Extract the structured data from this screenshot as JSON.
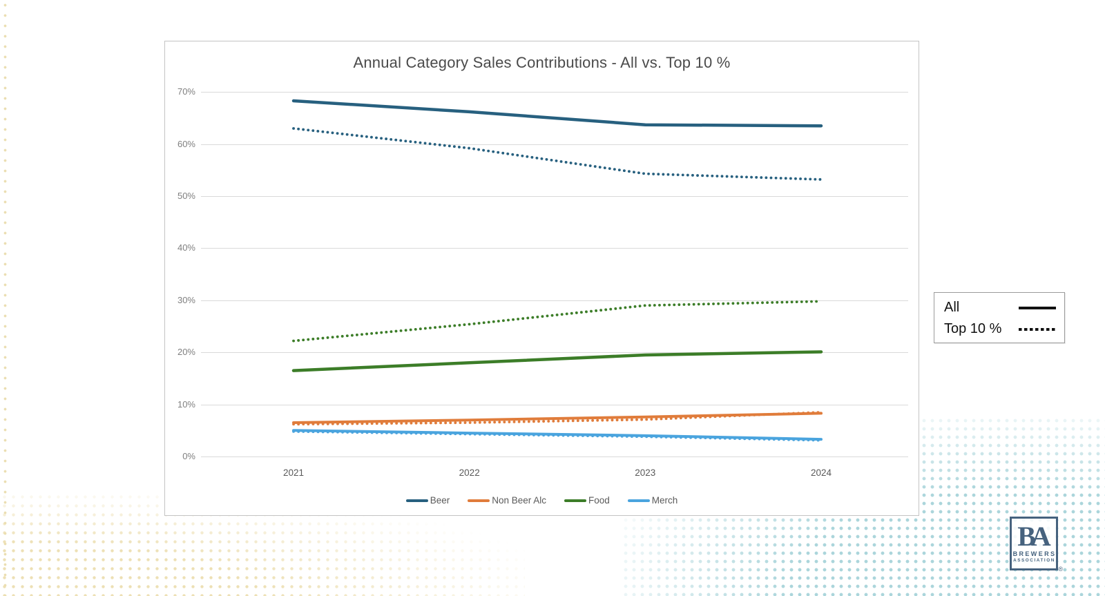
{
  "chart_data": {
    "type": "line",
    "title": "Annual Category Sales Contributions - All vs. Top 10 %",
    "x": [
      "2021",
      "2022",
      "2023",
      "2024"
    ],
    "ylim": [
      0,
      70
    ],
    "y_ticks": [
      "0%",
      "10%",
      "20%",
      "30%",
      "40%",
      "50%",
      "60%",
      "70%"
    ],
    "grid": true,
    "legend_position": "bottom-categories and right-styles",
    "legend_categories": [
      {
        "label": "Beer",
        "color": "#27607f"
      },
      {
        "label": "Non Beer Alc",
        "color": "#e07c3b"
      },
      {
        "label": "Food",
        "color": "#3c7d28"
      },
      {
        "label": "Merch",
        "color": "#4aa4de"
      }
    ],
    "legend_styles": [
      {
        "label": "All",
        "dash": "solid"
      },
      {
        "label": "Top 10 %",
        "dash": "dotted"
      }
    ],
    "series": [
      {
        "name": "Beer - All",
        "category": "Beer",
        "group": "All",
        "style": "solid",
        "color": "#27607f",
        "width": 4.5,
        "values": [
          68.3,
          66.2,
          63.7,
          63.5
        ]
      },
      {
        "name": "Non Beer Alc - All",
        "category": "Non Beer Alc",
        "group": "All",
        "style": "solid",
        "color": "#e07c3b",
        "width": 4,
        "values": [
          6.5,
          7.0,
          7.6,
          8.3
        ]
      },
      {
        "name": "Food - All",
        "category": "Food",
        "group": "All",
        "style": "solid",
        "color": "#3c7d28",
        "width": 4.5,
        "values": [
          16.5,
          18.0,
          19.5,
          20.1
        ]
      },
      {
        "name": "Merch - All",
        "category": "Merch",
        "group": "All",
        "style": "solid",
        "color": "#4aa4de",
        "width": 4,
        "values": [
          5.0,
          4.5,
          4.0,
          3.3
        ]
      },
      {
        "name": "Beer - Top 10 %",
        "category": "Beer",
        "group": "Top 10 %",
        "style": "dotted",
        "color": "#27607f",
        "width": 3.8,
        "values": [
          63.0,
          59.2,
          54.3,
          53.2
        ]
      },
      {
        "name": "Non Beer Alc - Top 10 %",
        "category": "Non Beer Alc",
        "group": "Top 10 %",
        "style": "dotted",
        "color": "#e07c3b",
        "width": 3.8,
        "values": [
          6.2,
          6.5,
          7.1,
          8.5
        ]
      },
      {
        "name": "Food - Top 10 %",
        "category": "Food",
        "group": "Top 10 %",
        "style": "dotted",
        "color": "#3c7d28",
        "width": 3.8,
        "values": [
          22.2,
          25.4,
          29.0,
          29.8
        ]
      },
      {
        "name": "Merch - Top 10 %",
        "category": "Merch",
        "group": "Top 10 %",
        "style": "dotted",
        "color": "#4aa4de",
        "width": 3.8,
        "values": [
          4.8,
          4.3,
          3.8,
          3.1
        ]
      }
    ]
  },
  "logo": {
    "initials": "BA",
    "line1": "BREWERS",
    "line2": "ASSOCIATION",
    "registered": "®"
  }
}
